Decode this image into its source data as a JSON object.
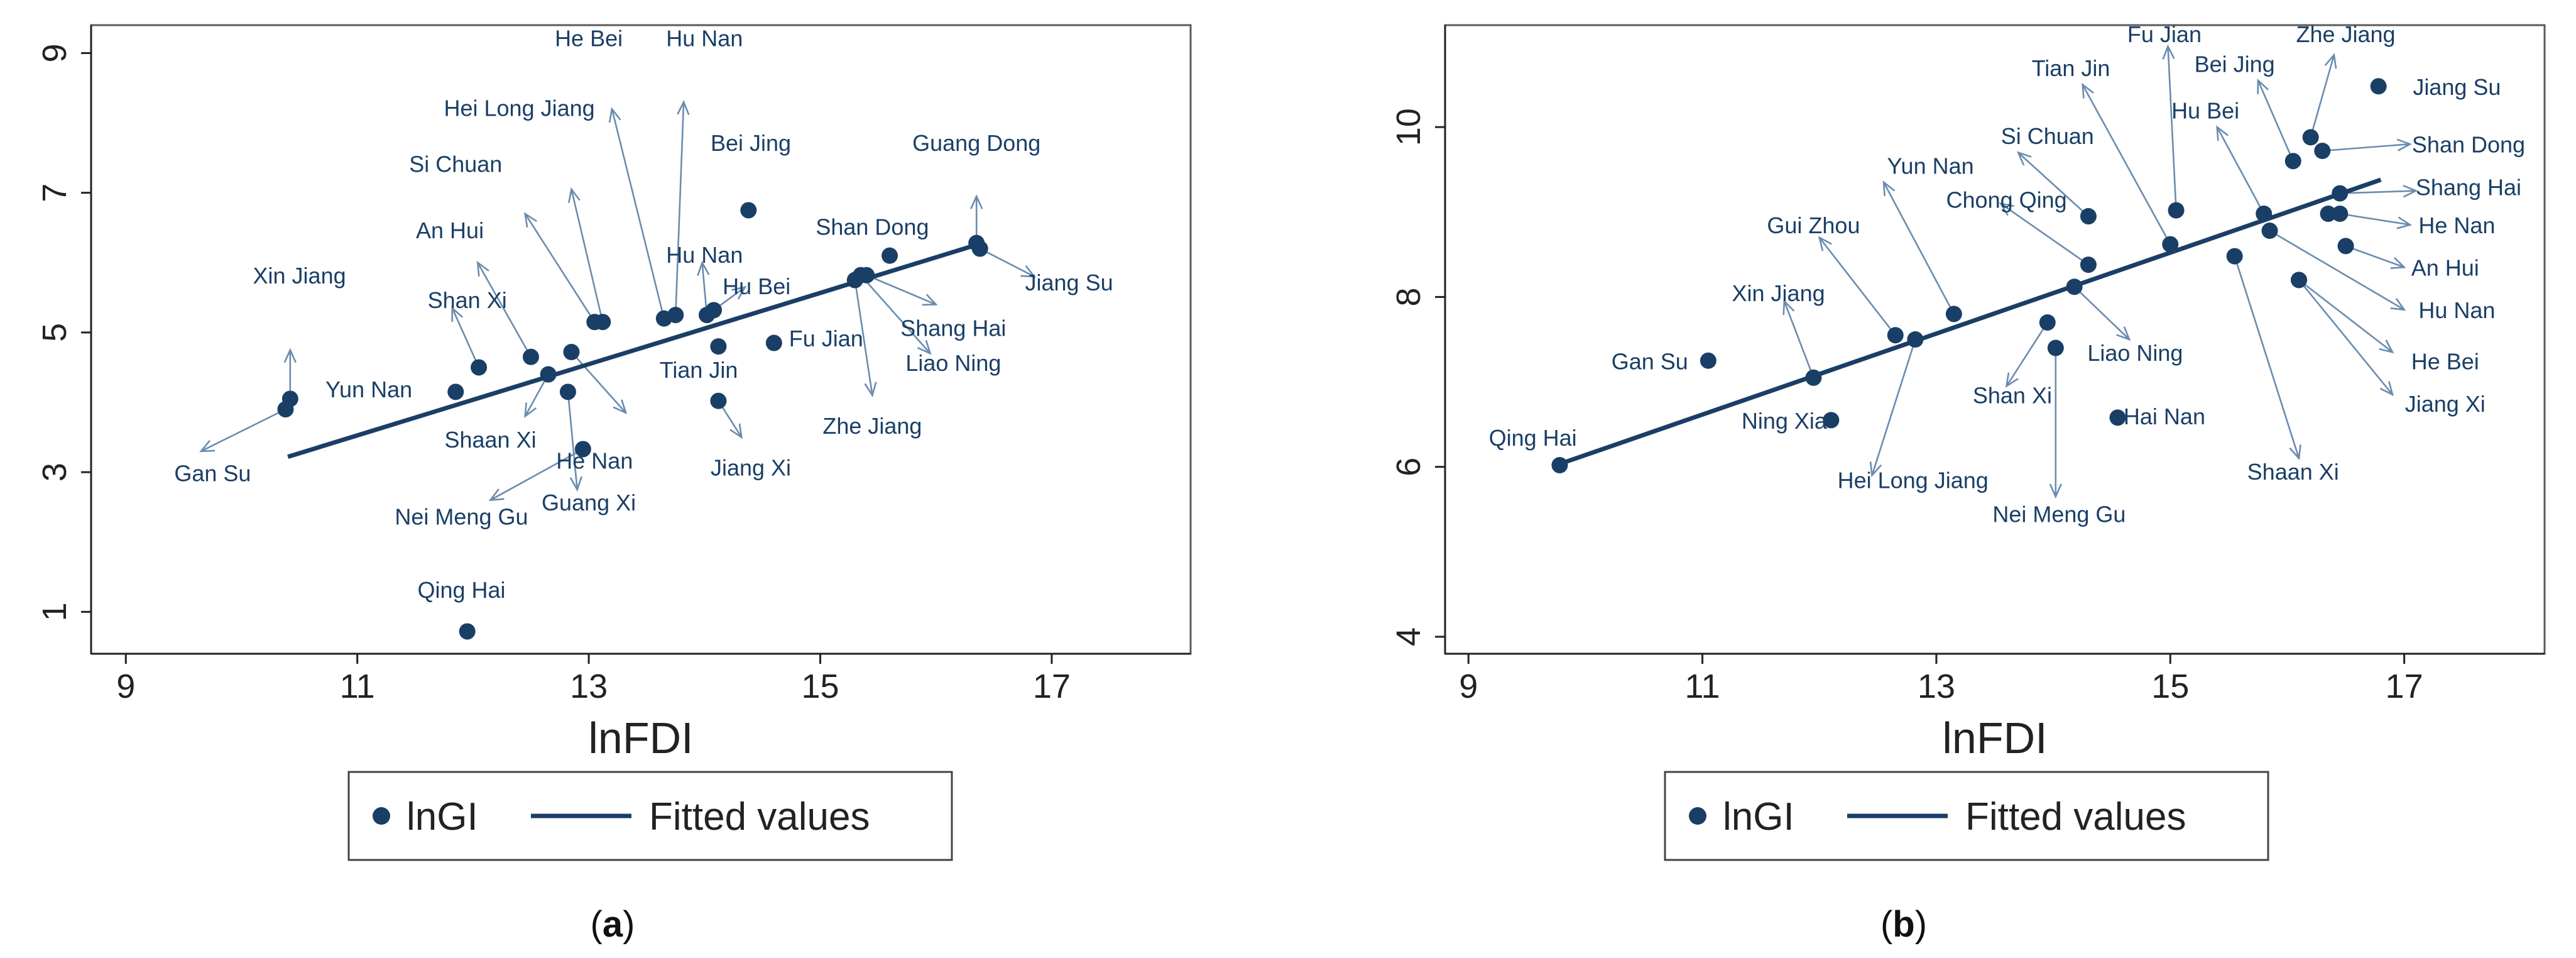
{
  "chart_data": [
    {
      "type": "scatter",
      "panel_label": "a",
      "xlabel": "lnFDI",
      "ylabel": "",
      "xlim": [
        8.7,
        18.2
      ],
      "ylim": [
        0.4,
        9.4
      ],
      "xticks": [
        9,
        11,
        13,
        15,
        17
      ],
      "yticks": [
        1,
        3,
        5,
        7,
        9
      ],
      "legend": [
        "lnGI",
        "Fitted values"
      ],
      "fitted": {
        "x": [
          10.4,
          16.4
        ],
        "y": [
          3.22,
          6.28
        ]
      },
      "points": [
        {
          "name": "Xin Jiang",
          "x": 10.42,
          "y": 4.05,
          "label": "Xin Jiang",
          "lx": 10.5,
          "ly": 5.7,
          "anchor": "middle",
          "ax": 10.42,
          "ay": 4.75
        },
        {
          "name": "Gan Su",
          "x": 10.38,
          "y": 3.9,
          "label": "Gan Su",
          "lx": 9.75,
          "ly": 2.87,
          "anchor": "middle",
          "ax": 9.65,
          "ay": 3.3
        },
        {
          "name": "Yun Nan",
          "x": 11.85,
          "y": 4.15,
          "label": "Yun Nan",
          "lx": 11.1,
          "ly": 4.07,
          "anchor": "middle",
          "ax": null,
          "ay": null
        },
        {
          "name": "Shan Xi",
          "x": 12.05,
          "y": 4.5,
          "label": "Shan Xi",
          "lx": 11.95,
          "ly": 5.35,
          "anchor": "middle",
          "ax": 11.82,
          "ay": 5.35
        },
        {
          "name": "An Hui",
          "x": 12.5,
          "y": 4.65,
          "label": "An Hui",
          "lx": 11.8,
          "ly": 6.35,
          "anchor": "middle",
          "ax": 12.04,
          "ay": 6.0
        },
        {
          "name": "Shaan Xi",
          "x": 12.65,
          "y": 4.4,
          "label": "Shaan Xi",
          "lx": 12.15,
          "ly": 3.35,
          "anchor": "middle",
          "ax": 12.45,
          "ay": 3.8
        },
        {
          "name": "He Nan",
          "x": 12.85,
          "y": 4.72,
          "label": "He Nan",
          "lx": 13.05,
          "ly": 3.05,
          "anchor": "middle",
          "ax": 13.32,
          "ay": 3.85
        },
        {
          "name": "Guang Xi",
          "x": 12.82,
          "y": 4.15,
          "label": "Guang Xi",
          "lx": 13.0,
          "ly": 2.45,
          "anchor": "middle",
          "ax": 12.9,
          "ay": 2.75
        },
        {
          "name": "Nei Meng Gu",
          "x": 12.95,
          "y": 3.33,
          "label": "Nei Meng Gu",
          "lx": 11.9,
          "ly": 2.25,
          "anchor": "middle",
          "ax": 12.15,
          "ay": 2.6
        },
        {
          "name": "Si Chuan",
          "x": 13.05,
          "y": 5.15,
          "label": "Si Chuan",
          "lx": 11.85,
          "ly": 7.3,
          "anchor": "middle",
          "ax": 12.45,
          "ay": 6.7
        },
        {
          "name": "Hei Long Jiang",
          "x": 13.12,
          "y": 5.15,
          "label": "Hei Long Jiang",
          "lx": 12.4,
          "ly": 8.1,
          "anchor": "middle",
          "ax": 12.85,
          "ay": 7.05
        },
        {
          "name": "He Bei",
          "x": 13.65,
          "y": 5.2,
          "label": "He Bei",
          "lx": 13.0,
          "ly": 9.1,
          "anchor": "middle",
          "ax": 13.2,
          "ay": 8.2
        },
        {
          "name": "Hu Nan",
          "x": 13.75,
          "y": 5.25,
          "label": "Hu Nan",
          "lx": 14.0,
          "ly": 9.1,
          "anchor": "middle",
          "ax": 13.82,
          "ay": 8.3
        },
        {
          "name": "Hu Nan (2)",
          "x": 14.02,
          "y": 5.25,
          "label": "Hu Nan",
          "lx": 14.0,
          "ly": 6.0,
          "anchor": "middle",
          "ax": 13.98,
          "ay": 6.0
        },
        {
          "name": "Hu Bei",
          "x": 14.08,
          "y": 5.32,
          "label": "Hu Bei",
          "lx": 14.45,
          "ly": 5.55,
          "anchor": "middle",
          "ax": 14.35,
          "ay": 5.65
        },
        {
          "name": "Bei Jing",
          "x": 14.38,
          "y": 6.75,
          "label": "Bei Jing",
          "lx": 14.4,
          "ly": 7.6,
          "anchor": "middle",
          "ax": null,
          "ay": null
        },
        {
          "name": "Tian Jin",
          "x": 14.12,
          "y": 4.8,
          "label": "Tian Jin",
          "lx": 13.95,
          "ly": 4.35,
          "anchor": "middle",
          "ax": null,
          "ay": null
        },
        {
          "name": "Fu Jian",
          "x": 14.6,
          "y": 4.85,
          "label": "Fu Jian",
          "lx": 15.05,
          "ly": 4.8,
          "anchor": "middle",
          "ax": null,
          "ay": null
        },
        {
          "name": "Jiang Xi",
          "x": 14.12,
          "y": 4.02,
          "label": "Jiang Xi",
          "lx": 14.4,
          "ly": 2.95,
          "anchor": "middle",
          "ax": 14.32,
          "ay": 3.5
        },
        {
          "name": "Shan Dong",
          "x": 15.6,
          "y": 6.1,
          "label": "Shan Dong",
          "lx": 15.45,
          "ly": 6.4,
          "anchor": "middle",
          "ax": null,
          "ay": null
        },
        {
          "name": "Zhe Jiang",
          "x": 15.3,
          "y": 5.75,
          "label": "Zhe Jiang",
          "lx": 15.45,
          "ly": 3.55,
          "anchor": "middle",
          "ax": 15.45,
          "ay": 4.1
        },
        {
          "name": "Liao Ning",
          "x": 15.35,
          "y": 5.82,
          "label": "Liao Ning",
          "lx": 16.15,
          "ly": 4.45,
          "anchor": "middle",
          "ax": 15.95,
          "ay": 4.7
        },
        {
          "name": "Shang Hai",
          "x": 15.4,
          "y": 5.82,
          "label": "Shang Hai",
          "lx": 16.15,
          "ly": 4.95,
          "anchor": "middle",
          "ax": 16.0,
          "ay": 5.4
        },
        {
          "name": "Guang Dong",
          "x": 16.35,
          "y": 6.28,
          "label": "Guang Dong",
          "lx": 16.35,
          "ly": 7.6,
          "anchor": "middle",
          "ax": 16.35,
          "ay": 6.95
        },
        {
          "name": "Jiang Su",
          "x": 16.38,
          "y": 6.2,
          "label": "Jiang Su",
          "lx": 17.15,
          "ly": 5.6,
          "anchor": "middle",
          "ax": 16.85,
          "ay": 5.8
        },
        {
          "name": "Qing Hai",
          "x": 11.95,
          "y": 0.72,
          "label": "Qing Hai",
          "lx": 11.9,
          "ly": 1.2,
          "anchor": "middle",
          "ax": null,
          "ay": null
        }
      ]
    },
    {
      "type": "scatter",
      "panel_label": "b",
      "xlabel": "lnFDI",
      "ylabel": "",
      "xlim": [
        8.8,
        18.2
      ],
      "ylim": [
        3.8,
        11.2
      ],
      "xticks": [
        9,
        11,
        13,
        15,
        17
      ],
      "yticks": [
        4,
        6,
        8,
        10
      ],
      "legend": [
        "lnGI",
        "Fitted values"
      ],
      "fitted": {
        "x": [
          9.75,
          16.8
        ],
        "y": [
          6.02,
          9.38
        ]
      },
      "points": [
        {
          "name": "Qing Hai",
          "x": 9.78,
          "y": 6.02,
          "label": "Qing Hai",
          "lx": 9.55,
          "ly": 6.25,
          "anchor": "middle",
          "ax": null,
          "ay": null
        },
        {
          "name": "Gan Su",
          "x": 11.05,
          "y": 7.25,
          "label": "Gan Su",
          "lx": 10.55,
          "ly": 7.15,
          "anchor": "middle",
          "ax": null,
          "ay": null
        },
        {
          "name": "Xin Jiang",
          "x": 11.95,
          "y": 7.05,
          "label": "Xin Jiang",
          "lx": 11.65,
          "ly": 7.95,
          "anchor": "middle",
          "ax": 11.7,
          "ay": 7.95
        },
        {
          "name": "Ning Xia",
          "x": 12.1,
          "y": 6.55,
          "label": "Ning Xia",
          "lx": 11.7,
          "ly": 6.45,
          "anchor": "middle",
          "ax": null,
          "ay": null
        },
        {
          "name": "Gui Zhou",
          "x": 12.65,
          "y": 7.55,
          "label": "Gui Zhou",
          "lx": 11.95,
          "ly": 8.75,
          "anchor": "middle",
          "ax": 12.0,
          "ay": 8.7
        },
        {
          "name": "Hei Long Jiang",
          "x": 12.82,
          "y": 7.5,
          "label": "Hei Long Jiang",
          "lx": 12.8,
          "ly": 5.75,
          "anchor": "middle",
          "ax": 12.45,
          "ay": 5.9
        },
        {
          "name": "Yun Nan",
          "x": 13.15,
          "y": 7.8,
          "label": "Yun Nan",
          "lx": 12.95,
          "ly": 9.45,
          "anchor": "middle",
          "ax": 12.55,
          "ay": 9.35
        },
        {
          "name": "Si Chuan",
          "x": 14.3,
          "y": 8.95,
          "label": "Si Chuan",
          "lx": 13.95,
          "ly": 9.8,
          "anchor": "middle",
          "ax": 13.7,
          "ay": 9.7
        },
        {
          "name": "Chong Qing",
          "x": 14.3,
          "y": 8.38,
          "label": "Chong Qing",
          "lx": 13.6,
          "ly": 9.05,
          "anchor": "middle",
          "ax": 13.55,
          "ay": 9.1
        },
        {
          "name": "Liao Ning",
          "x": 14.18,
          "y": 8.12,
          "label": "Liao Ning",
          "lx": 14.7,
          "ly": 7.25,
          "anchor": "middle",
          "ax": 14.65,
          "ay": 7.5
        },
        {
          "name": "Shan Xi",
          "x": 13.95,
          "y": 7.7,
          "label": "Shan Xi",
          "lx": 13.65,
          "ly": 6.75,
          "anchor": "middle",
          "ax": 13.6,
          "ay": 6.95
        },
        {
          "name": "Nei Meng Gu",
          "x": 14.02,
          "y": 7.4,
          "label": "Nei Meng Gu",
          "lx": 14.05,
          "ly": 5.35,
          "anchor": "middle",
          "ax": 14.02,
          "ay": 5.65
        },
        {
          "name": "Hai Nan",
          "x": 14.55,
          "y": 6.58,
          "label": "Hai Nan",
          "lx": 14.95,
          "ly": 6.5,
          "anchor": "middle",
          "ax": null,
          "ay": null
        },
        {
          "name": "Tian Jin",
          "x": 15.0,
          "y": 8.62,
          "label": "Tian Jin",
          "lx": 14.15,
          "ly": 10.6,
          "anchor": "middle",
          "ax": 14.25,
          "ay": 10.5
        },
        {
          "name": "Fu Jian",
          "x": 15.05,
          "y": 9.02,
          "label": "Fu Jian",
          "lx": 14.95,
          "ly": 11.0,
          "anchor": "middle",
          "ax": 14.98,
          "ay": 10.95
        },
        {
          "name": "Hu Bei",
          "x": 15.8,
          "y": 8.98,
          "label": "Hu Bei",
          "lx": 15.3,
          "ly": 10.1,
          "anchor": "middle",
          "ax": 15.4,
          "ay": 10.0
        },
        {
          "name": "Shaan Xi",
          "x": 15.55,
          "y": 8.48,
          "label": "Shaan Xi",
          "lx": 16.05,
          "ly": 5.85,
          "anchor": "middle",
          "ax": 16.1,
          "ay": 6.1
        },
        {
          "name": "Bei Jing",
          "x": 16.05,
          "y": 9.6,
          "label": "Bei Jing",
          "lx": 15.55,
          "ly": 10.65,
          "anchor": "middle",
          "ax": 15.75,
          "ay": 10.55
        },
        {
          "name": "Zhe Jiang",
          "x": 16.2,
          "y": 9.88,
          "label": "Zhe Jiang",
          "lx": 16.5,
          "ly": 11.0,
          "anchor": "middle",
          "ax": 16.4,
          "ay": 10.85
        },
        {
          "name": "Jiang Su",
          "x": 16.78,
          "y": 10.48,
          "label": "Jiang Su",
          "lx": 17.45,
          "ly": 10.38,
          "anchor": "middle",
          "ax": null,
          "ay": null
        },
        {
          "name": "Shan Dong",
          "x": 16.3,
          "y": 9.72,
          "label": "Shan Dong",
          "lx": 17.55,
          "ly": 9.7,
          "anchor": "middle",
          "ax": 17.05,
          "ay": 9.8
        },
        {
          "name": "Shang Hai",
          "x": 16.45,
          "y": 9.22,
          "label": "Shang Hai",
          "lx": 17.55,
          "ly": 9.2,
          "anchor": "middle",
          "ax": 17.1,
          "ay": 9.25
        },
        {
          "name": "He Nan",
          "x": 16.45,
          "y": 8.98,
          "label": "He Nan",
          "lx": 17.45,
          "ly": 8.75,
          "anchor": "middle",
          "ax": 17.05,
          "ay": 8.85
        },
        {
          "name": "He Nan pt2",
          "x": 16.35,
          "y": 8.98,
          "label": "",
          "lx": 0,
          "ly": 0,
          "anchor": "middle",
          "ax": null,
          "ay": null
        },
        {
          "name": "An Hui",
          "x": 16.5,
          "y": 8.6,
          "label": "An Hui",
          "lx": 17.35,
          "ly": 8.25,
          "anchor": "middle",
          "ax": 17.0,
          "ay": 8.35
        },
        {
          "name": "Hu Nan",
          "x": 15.85,
          "y": 8.78,
          "label": "Hu Nan",
          "lx": 17.45,
          "ly": 7.75,
          "anchor": "middle",
          "ax": 17.0,
          "ay": 7.85
        },
        {
          "name": "He Bei",
          "x": 16.1,
          "y": 8.2,
          "label": "He Bei",
          "lx": 17.35,
          "ly": 7.15,
          "anchor": "middle",
          "ax": 16.9,
          "ay": 7.35
        },
        {
          "name": "Jiang Xi",
          "x": 16.1,
          "y": 8.2,
          "label": "Jiang Xi",
          "lx": 17.35,
          "ly": 6.65,
          "anchor": "middle",
          "ax": 16.9,
          "ay": 6.85
        }
      ]
    }
  ]
}
